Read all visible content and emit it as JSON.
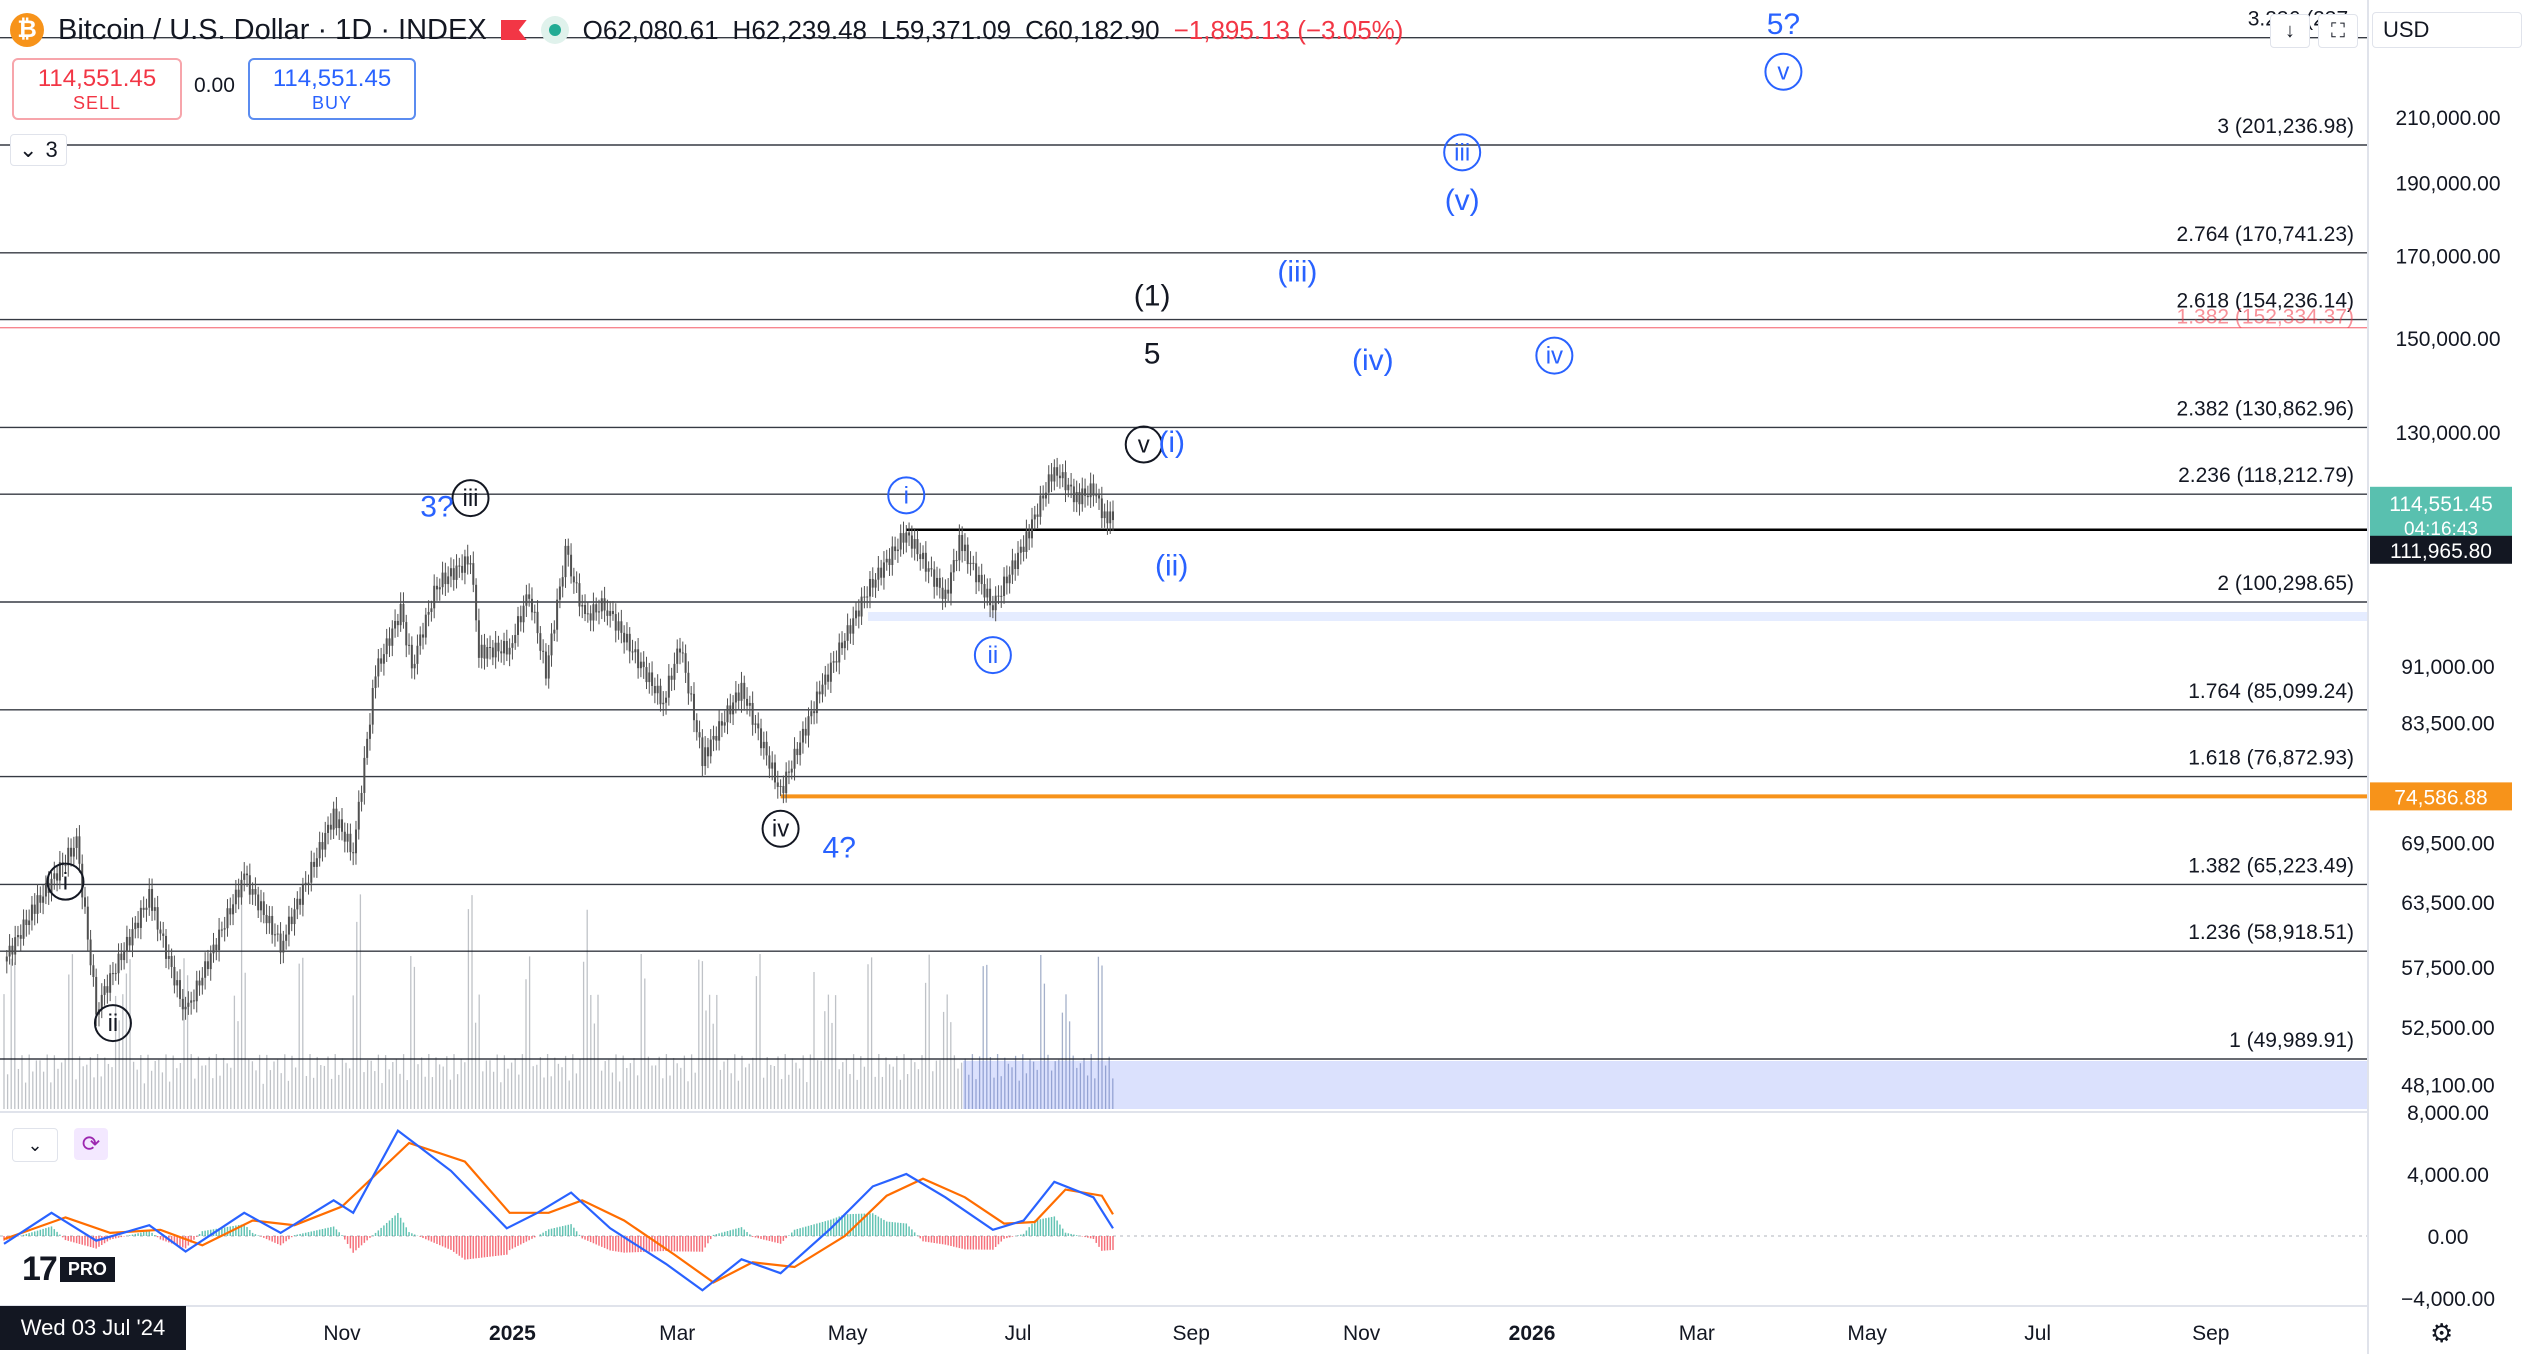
{
  "header": {
    "symbol_icon": "bitcoin-icon",
    "title": "Bitcoin / U.S. Dollar · 1D · INDEX",
    "ohlc": {
      "o": "O62,080.61",
      "h": "H62,239.48",
      "l": "L59,371.09",
      "c": "C60,182.90",
      "chg": "−1,895.13 (−3.05%)"
    }
  },
  "trade": {
    "sell_price": "114,551.45",
    "sell_label": "SELL",
    "spread": "0.00",
    "buy_price": "114,551.45",
    "buy_label": "BUY"
  },
  "layers": {
    "count": "3"
  },
  "currency": "USD",
  "colors": {
    "up": "#22ab94",
    "down": "#f23645",
    "wave_blue": "#2962ff",
    "orange": "#f7931a",
    "macd": "#2962ff",
    "signal": "#ff6d00"
  },
  "chart_data": {
    "type": "candlestick",
    "y_scale": "log",
    "price_axis_labels": [
      "210,000.00",
      "190,000.00",
      "170,000.00",
      "150,000.00",
      "130,000.00",
      "91,000.00",
      "83,500.00",
      "69,500.00",
      "63,500.00",
      "57,500.00",
      "52,500.00",
      "48,100.00"
    ],
    "time_axis_labels": [
      "Nov",
      "2025",
      "Mar",
      "May",
      "Jul",
      "Sep",
      "Nov",
      "2026",
      "Mar",
      "May",
      "Jul",
      "Sep"
    ],
    "fib_levels": [
      {
        "ratio_label": "3.236 (237,",
        "price": 237000
      },
      {
        "ratio_label": "3 (201,236.98)",
        "price": 201236.98
      },
      {
        "ratio_label": "2.764 (170,741.23)",
        "price": 170741.23
      },
      {
        "ratio_label": "2.618 (154,236.14)",
        "price": 154236.14
      },
      {
        "ratio_label": "2.382 (130,862.96)",
        "price": 130862.96
      },
      {
        "ratio_label": "2.236 (118,212.79)",
        "price": 118212.79
      },
      {
        "ratio_label": "2 (100,298.65)",
        "price": 100298.65
      },
      {
        "ratio_label": "1.764 (85,099.24)",
        "price": 85099.24
      },
      {
        "ratio_label": "1.618 (76,872.93)",
        "price": 76872.93
      },
      {
        "ratio_label": "1.382 (65,223.49)",
        "price": 65223.49
      },
      {
        "ratio_label": "1.236 (58,918.51)",
        "price": 58918.51
      },
      {
        "ratio_label": "1 (49,989.91)",
        "price": 49989.91
      }
    ],
    "red_level": {
      "label": "1.382 (152,334.37)",
      "price": 152334.37
    },
    "horizontal_lines": [
      {
        "label": "111,965.80",
        "price": 111965.8,
        "color": "#000000"
      },
      {
        "label": "74,586.88",
        "price": 74586.88,
        "color": "#f7931a"
      }
    ],
    "current_price": {
      "label": "114,551.45",
      "countdown": "04:16:43",
      "price": 114551.45
    },
    "wave_labels": [
      {
        "text": "i",
        "style": "circle-black",
        "date": "2024-07-25",
        "price": 65500
      },
      {
        "text": "ii",
        "style": "circle-black",
        "date": "2024-08-11",
        "price": 52800
      },
      {
        "text": "iii",
        "style": "circle-black",
        "date": "2024-12-17",
        "price": 117500
      },
      {
        "text": "3?",
        "style": "plain-blue",
        "date": "2024-12-05",
        "price": 116000
      },
      {
        "text": "iv",
        "style": "circle-black",
        "date": "2025-04-07",
        "price": 71000
      },
      {
        "text": "4?",
        "style": "plain-blue",
        "date": "2025-04-28",
        "price": 69000
      },
      {
        "text": "i",
        "style": "circle-blue",
        "date": "2025-05-22",
        "price": 118000
      },
      {
        "text": "ii",
        "style": "circle-blue",
        "date": "2025-06-22",
        "price": 92500
      },
      {
        "text": "(ii)",
        "style": "plain-blue",
        "date": "2025-08-25",
        "price": 106000
      },
      {
        "text": "v",
        "style": "circle-black",
        "date": "2025-08-15",
        "price": 127500
      },
      {
        "text": "(i)",
        "style": "plain-blue",
        "date": "2025-08-25",
        "price": 128000
      },
      {
        "text": "5",
        "style": "plain-black",
        "date": "2025-08-18",
        "price": 146500
      },
      {
        "text": "(1)",
        "style": "plain-black",
        "date": "2025-08-18",
        "price": 160000
      },
      {
        "text": "(iii)",
        "style": "plain-blue",
        "date": "2025-10-09",
        "price": 166000
      },
      {
        "text": "(iv)",
        "style": "plain-blue",
        "date": "2025-11-05",
        "price": 145000
      },
      {
        "text": "iii",
        "style": "circle-blue",
        "date": "2025-12-07",
        "price": 199000
      },
      {
        "text": "(v)",
        "style": "plain-blue",
        "date": "2025-12-07",
        "price": 185000
      },
      {
        "text": "iv",
        "style": "circle-blue",
        "date": "2026-01-09",
        "price": 146000
      },
      {
        "text": "v",
        "style": "circle-blue",
        "date": "2026-04-01",
        "price": 225000
      },
      {
        "text": "5?",
        "style": "plain-blue",
        "date": "2026-04-01",
        "price": 242000
      }
    ],
    "price_path": [
      [
        "2024-07-03",
        58000
      ],
      [
        "2024-07-14",
        63000
      ],
      [
        "2024-07-29",
        69500
      ],
      [
        "2024-08-05",
        54000
      ],
      [
        "2024-08-24",
        64000
      ],
      [
        "2024-09-06",
        53500
      ],
      [
        "2024-09-27",
        66000
      ],
      [
        "2024-10-10",
        59500
      ],
      [
        "2024-10-29",
        72500
      ],
      [
        "2024-11-05",
        68500
      ],
      [
        "2024-11-13",
        90000
      ],
      [
        "2024-11-22",
        99000
      ],
      [
        "2024-11-26",
        91000
      ],
      [
        "2024-12-05",
        103000
      ],
      [
        "2024-12-17",
        107000
      ],
      [
        "2024-12-20",
        93000
      ],
      [
        "2024-12-31",
        93500
      ],
      [
        "2025-01-07",
        102000
      ],
      [
        "2025-01-13",
        90000
      ],
      [
        "2025-01-20",
        108000
      ],
      [
        "2025-01-27",
        98000
      ],
      [
        "2025-02-03",
        100000
      ],
      [
        "2025-02-24",
        86000
      ],
      [
        "2025-03-02",
        94000
      ],
      [
        "2025-03-10",
        79000
      ],
      [
        "2025-03-24",
        88000
      ],
      [
        "2025-04-07",
        75000
      ],
      [
        "2025-04-21",
        87500
      ],
      [
        "2025-05-08",
        102000
      ],
      [
        "2025-05-22",
        111500
      ],
      [
        "2025-06-05",
        101000
      ],
      [
        "2025-06-10",
        110000
      ],
      [
        "2025-06-22",
        99500
      ],
      [
        "2025-07-03",
        109500
      ],
      [
        "2025-07-14",
        123000
      ],
      [
        "2025-07-22",
        117500
      ],
      [
        "2025-07-28",
        119000
      ],
      [
        "2025-08-02",
        113000
      ],
      [
        "2025-08-04",
        114551
      ]
    ],
    "macd": {
      "axis_labels": [
        "8,000.00",
        "4,000.00",
        "0.00",
        "−4,000.00"
      ],
      "macd_path": [
        [
          "2024-07-03",
          -500
        ],
        [
          "2024-07-20",
          1500
        ],
        [
          "2024-08-05",
          -300
        ],
        [
          "2024-08-24",
          700
        ],
        [
          "2024-09-06",
          -1000
        ],
        [
          "2024-09-27",
          1500
        ],
        [
          "2024-10-10",
          200
        ],
        [
          "2024-10-29",
          2300
        ],
        [
          "2024-11-05",
          1500
        ],
        [
          "2024-11-21",
          6800
        ],
        [
          "2024-12-10",
          4200
        ],
        [
          "2024-12-30",
          500
        ],
        [
          "2025-01-10",
          1500
        ],
        [
          "2025-01-22",
          2800
        ],
        [
          "2025-02-05",
          500
        ],
        [
          "2025-02-25",
          -1800
        ],
        [
          "2025-03-10",
          -3500
        ],
        [
          "2025-03-24",
          -1500
        ],
        [
          "2025-04-07",
          -2400
        ],
        [
          "2025-04-25",
          500
        ],
        [
          "2025-05-10",
          3200
        ],
        [
          "2025-05-22",
          4000
        ],
        [
          "2025-06-05",
          2500
        ],
        [
          "2025-06-22",
          400
        ],
        [
          "2025-07-03",
          1000
        ],
        [
          "2025-07-14",
          3500
        ],
        [
          "2025-07-28",
          2500
        ],
        [
          "2025-08-04",
          500
        ]
      ],
      "signal_path": [
        [
          "2024-07-03",
          -200
        ],
        [
          "2024-07-25",
          1200
        ],
        [
          "2024-08-10",
          200
        ],
        [
          "2024-08-28",
          400
        ],
        [
          "2024-09-12",
          -600
        ],
        [
          "2024-09-30",
          1000
        ],
        [
          "2024-10-15",
          700
        ],
        [
          "2024-11-01",
          1900
        ],
        [
          "2024-11-25",
          6000
        ],
        [
          "2024-12-15",
          4800
        ],
        [
          "2024-12-31",
          1500
        ],
        [
          "2025-01-14",
          1500
        ],
        [
          "2025-01-26",
          2300
        ],
        [
          "2025-02-10",
          1000
        ],
        [
          "2025-02-28",
          -1200
        ],
        [
          "2025-03-14",
          -3000
        ],
        [
          "2025-03-28",
          -1700
        ],
        [
          "2025-04-12",
          -2000
        ],
        [
          "2025-04-30",
          0
        ],
        [
          "2025-05-15",
          2600
        ],
        [
          "2025-05-28",
          3700
        ],
        [
          "2025-06-12",
          2500
        ],
        [
          "2025-06-26",
          800
        ],
        [
          "2025-07-07",
          900
        ],
        [
          "2025-07-18",
          3000
        ],
        [
          "2025-07-31",
          2600
        ],
        [
          "2025-08-04",
          1400
        ]
      ]
    }
  },
  "footer": {
    "date_tag": "Wed 03 Jul '24",
    "logo_pro": "PRO"
  }
}
